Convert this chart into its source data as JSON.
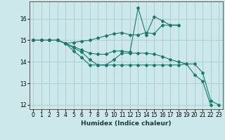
{
  "xlabel": "Humidex (Indice chaleur)",
  "background_color": "#cce8ea",
  "grid_color": "#aacfd2",
  "line_color": "#1a7a6e",
  "xlim": [
    -0.5,
    23.5
  ],
  "ylim": [
    11.8,
    16.8
  ],
  "xticks": [
    0,
    1,
    2,
    3,
    4,
    5,
    6,
    7,
    8,
    9,
    10,
    11,
    12,
    13,
    14,
    15,
    16,
    17,
    18,
    19,
    20,
    21,
    22,
    23
  ],
  "yticks": [
    12,
    13,
    14,
    15,
    16
  ],
  "series": [
    {
      "x": [
        0,
        1,
        2,
        3,
        4,
        5,
        6,
        7,
        8,
        9,
        10,
        11,
        12,
        13,
        14,
        15,
        16,
        17,
        18,
        19,
        20,
        21,
        22,
        23
      ],
      "y": [
        15.0,
        15.0,
        15.0,
        15.0,
        14.85,
        14.9,
        14.95,
        15.0,
        15.1,
        15.2,
        15.3,
        15.35,
        15.25,
        15.25,
        15.35,
        15.3,
        15.7,
        15.7,
        15.7,
        null,
        null,
        null,
        null,
        null
      ]
    },
    {
      "x": [
        0,
        1,
        2,
        3,
        4,
        5,
        6,
        7,
        8,
        9,
        10,
        11,
        12,
        13,
        14,
        15,
        16,
        17,
        18
      ],
      "y": [
        15.0,
        15.0,
        15.0,
        15.0,
        14.85,
        14.7,
        14.55,
        14.4,
        14.35,
        14.35,
        14.5,
        14.5,
        14.45,
        16.5,
        15.25,
        16.1,
        15.9,
        15.7,
        15.7
      ]
    },
    {
      "x": [
        0,
        1,
        2,
        3,
        4,
        5,
        6,
        7,
        8,
        9,
        10,
        11,
        12,
        13,
        14,
        15,
        16,
        17,
        18,
        19,
        20,
        21,
        22,
        23
      ],
      "y": [
        15.0,
        15.0,
        15.0,
        15.0,
        14.85,
        14.65,
        14.45,
        14.1,
        13.85,
        13.85,
        14.1,
        14.4,
        14.4,
        14.4,
        14.4,
        14.35,
        14.25,
        14.1,
        14.0,
        13.9,
        13.4,
        13.1,
        12.0,
        null
      ]
    },
    {
      "x": [
        0,
        1,
        2,
        3,
        4,
        5,
        6,
        7,
        8,
        9,
        10,
        11,
        12,
        13,
        14,
        15,
        16,
        17,
        18,
        19,
        20,
        21,
        22,
        23
      ],
      "y": [
        15.0,
        15.0,
        15.0,
        15.0,
        14.85,
        14.5,
        14.2,
        13.85,
        13.85,
        13.85,
        13.85,
        13.85,
        13.85,
        13.85,
        13.85,
        13.85,
        13.85,
        13.85,
        13.85,
        13.9,
        13.9,
        13.5,
        12.2,
        12.0
      ]
    }
  ]
}
